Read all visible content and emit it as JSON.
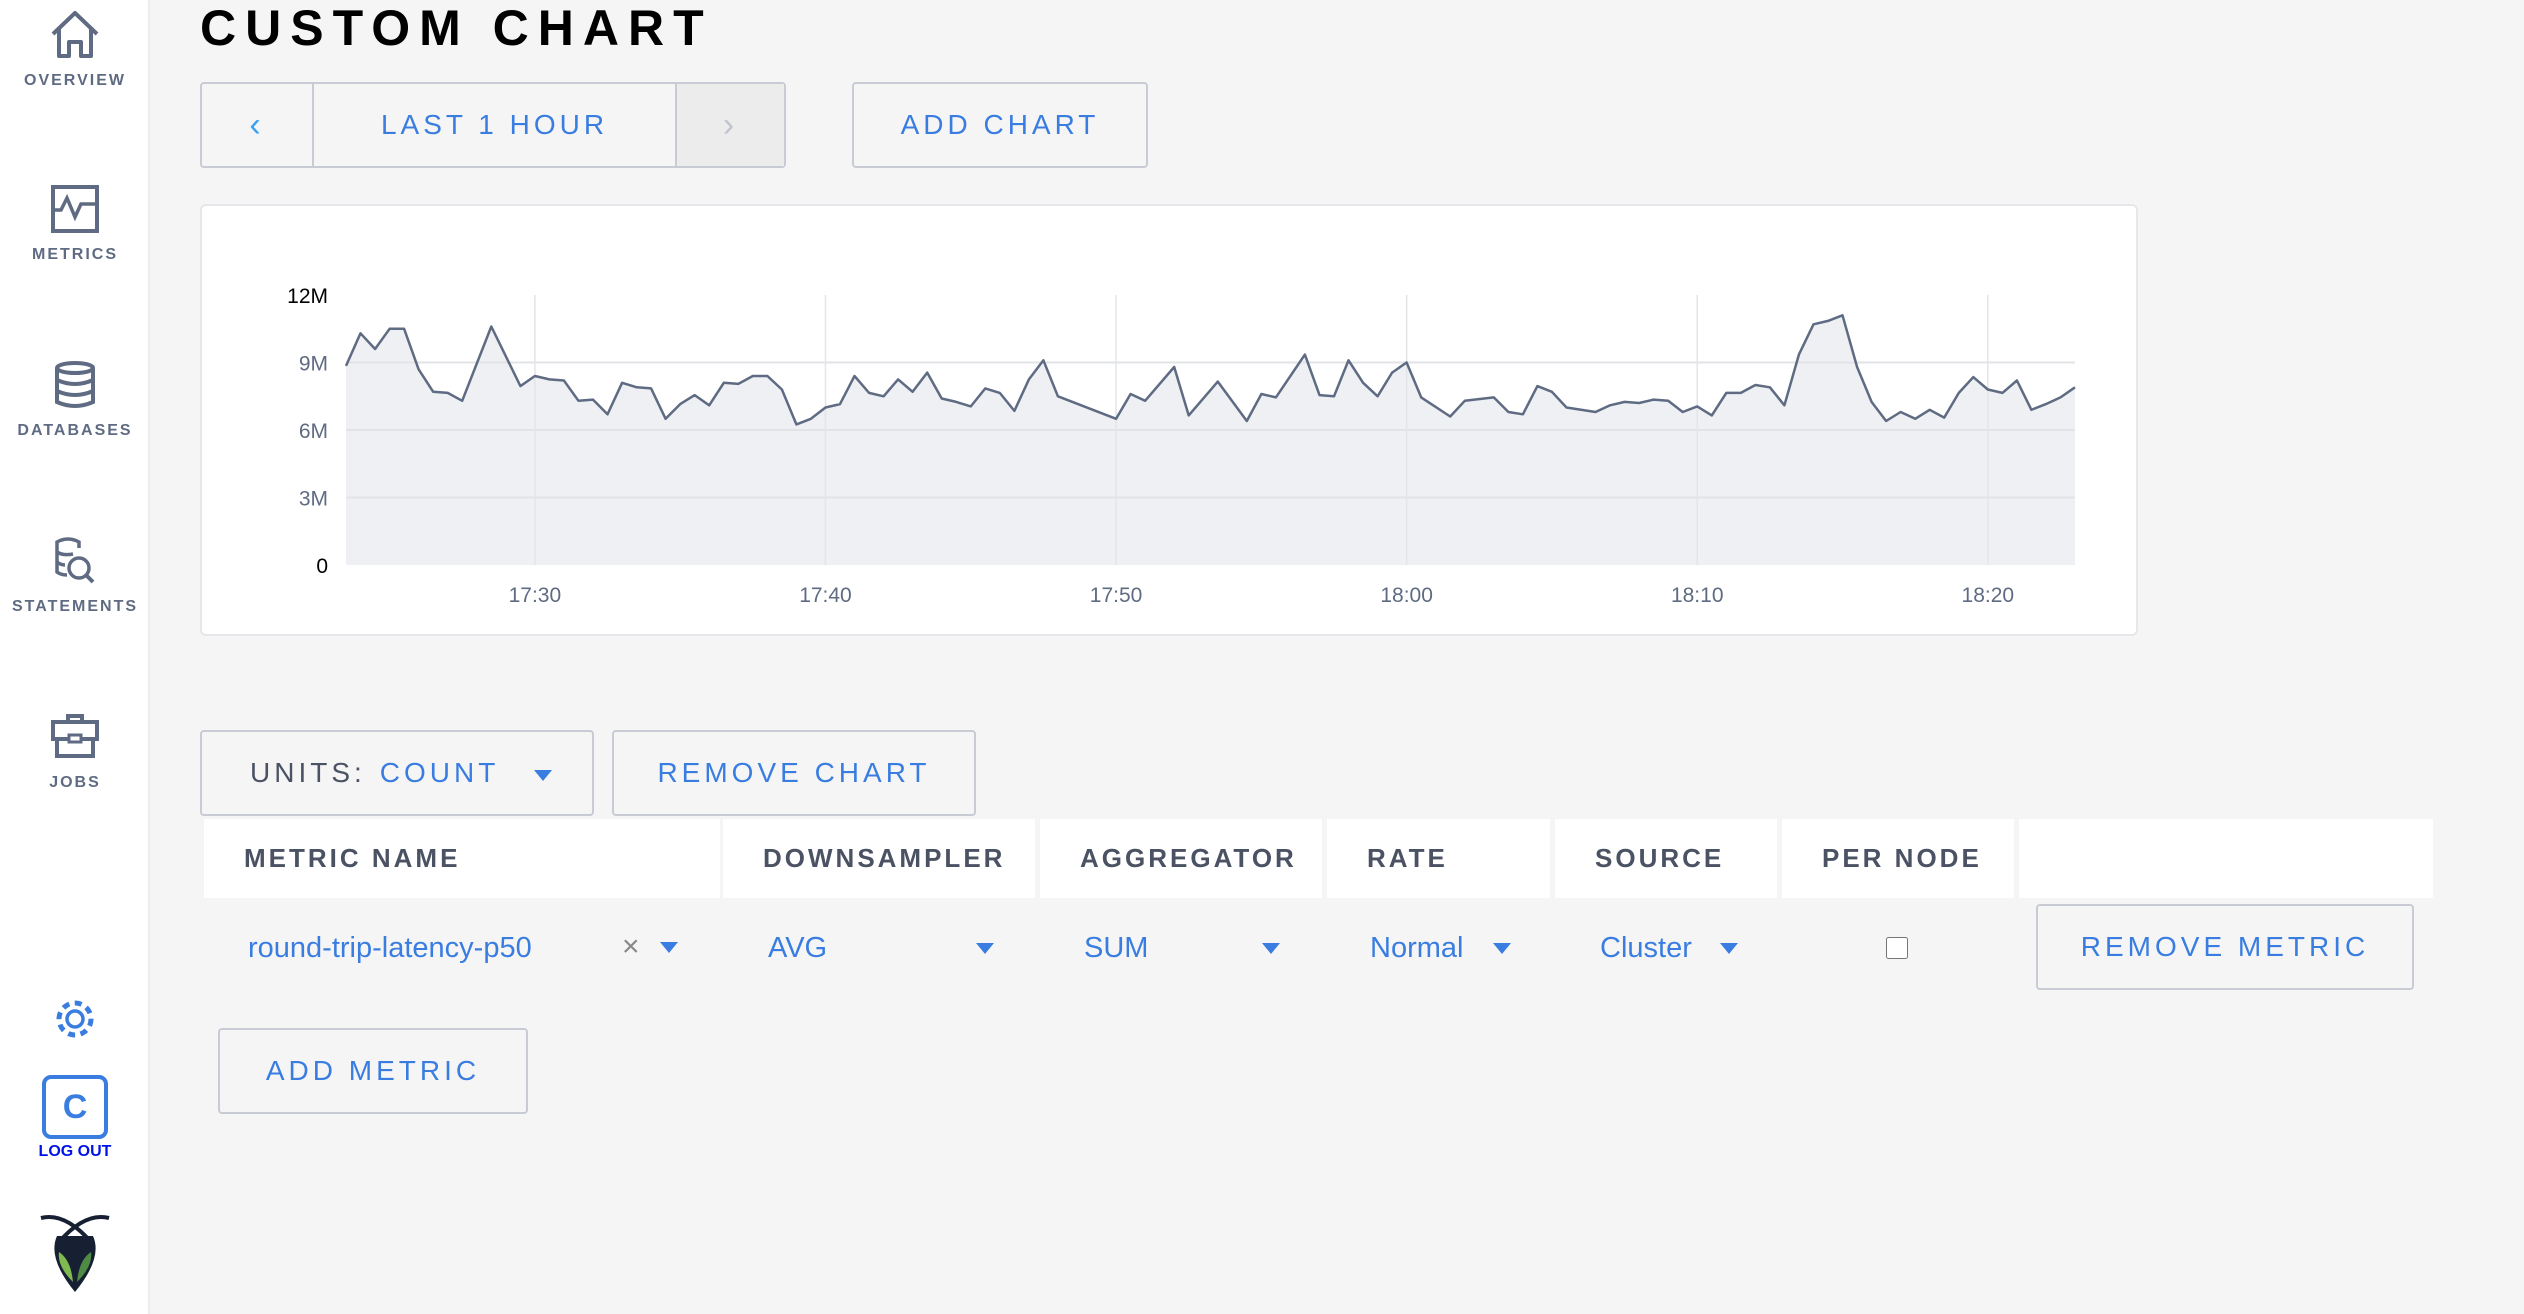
{
  "sidebar": {
    "items": [
      {
        "label": "OVERVIEW",
        "icon": "home-icon"
      },
      {
        "label": "METRICS",
        "icon": "metrics-icon"
      },
      {
        "label": "DATABASES",
        "icon": "database-icon"
      },
      {
        "label": "STATEMENTS",
        "icon": "statements-icon"
      },
      {
        "label": "JOBS",
        "icon": "briefcase-icon"
      }
    ],
    "settings_icon": "gear-icon",
    "user_initial": "C",
    "logout_label": "LOG OUT",
    "logo": "cockroach-logo"
  },
  "page": {
    "title": "CUSTOM CHART"
  },
  "toolbar": {
    "prev_icon": "chevron-left-icon",
    "time_range": "LAST 1 HOUR",
    "next_icon": "chevron-right-icon",
    "add_chart": "ADD CHART"
  },
  "chart_controls": {
    "units_label": "UNITS:",
    "units_value": "COUNT",
    "remove_chart": "REMOVE CHART"
  },
  "table": {
    "headers": [
      "METRIC NAME",
      "DOWNSAMPLER",
      "AGGREGATOR",
      "RATE",
      "SOURCE",
      "PER NODE"
    ],
    "rows": [
      {
        "metric": "round-trip-latency-p50",
        "downsampler": "AVG",
        "aggregator": "SUM",
        "rate": "Normal",
        "source": "Cluster",
        "per_node": false,
        "remove": "REMOVE METRIC"
      }
    ],
    "add_metric": "ADD METRIC"
  },
  "colors": {
    "accent": "#3a7de1",
    "line": "#5f6b82",
    "area": "#eef0f4"
  },
  "chart_data": {
    "type": "area",
    "grid": true,
    "ylim": [
      0,
      12000000
    ],
    "yticks": [
      "0",
      "3M",
      "6M",
      "9M",
      "12M"
    ],
    "ytick_values": [
      0,
      3000000,
      6000000,
      9000000,
      12000000
    ],
    "xlim": [
      "17:23:30",
      "18:23:00"
    ],
    "xticks": [
      "17:30",
      "17:40",
      "17:50",
      "18:00",
      "18:10",
      "18:20"
    ],
    "series": [
      {
        "x": [
          "17:23:30",
          "17:24:00",
          "17:24:30",
          "17:25:00",
          "17:25:30",
          "17:26:00",
          "17:26:30",
          "17:27:00",
          "17:27:30",
          "17:28:30",
          "17:29:30",
          "17:30:00",
          "17:30:30",
          "17:31:00",
          "17:31:30",
          "17:32:00",
          "17:32:30",
          "17:33:00",
          "17:33:30",
          "17:34:00",
          "17:34:30",
          "17:35:00",
          "17:35:30",
          "17:36:00",
          "17:36:30",
          "17:37:00",
          "17:37:30",
          "17:38:00",
          "17:38:30",
          "17:39:00",
          "17:39:30",
          "17:40:00",
          "17:40:30",
          "17:41:00",
          "17:41:30",
          "17:42:00",
          "17:42:30",
          "17:43:00",
          "17:43:30",
          "17:44:00",
          "17:44:30",
          "17:45:00",
          "17:45:30",
          "17:46:00",
          "17:46:30",
          "17:47:00",
          "17:47:30",
          "17:48:00",
          "17:50:00",
          "17:50:30",
          "17:51:00",
          "17:52:00",
          "17:52:30",
          "17:53:30",
          "17:54:30",
          "17:55:00",
          "17:55:30",
          "17:56:30",
          "17:57:00",
          "17:57:30",
          "17:58:00",
          "17:58:30",
          "17:59:00",
          "17:59:30",
          "18:00:00",
          "18:00:30",
          "18:01:30",
          "18:02:00",
          "18:03:00",
          "18:03:30",
          "18:04:00",
          "18:04:30",
          "18:05:00",
          "18:05:30",
          "18:06:30",
          "18:07:00",
          "18:07:30",
          "18:08:00",
          "18:08:30",
          "18:09:00",
          "18:09:30",
          "18:10:00",
          "18:10:30",
          "18:11:00",
          "18:11:30",
          "18:12:00",
          "18:12:30",
          "18:13:00",
          "18:13:30",
          "18:14:00",
          "18:14:30",
          "18:15:00",
          "18:15:30",
          "18:16:00",
          "18:16:30",
          "18:17:00",
          "18:17:30",
          "18:18:00",
          "18:18:30",
          "18:19:00",
          "18:19:30",
          "18:20:00",
          "18:20:30",
          "18:21:00",
          "18:21:30",
          "18:22:00",
          "18:22:30",
          "18:23:00"
        ],
        "y": [
          8850000,
          10300000,
          9600000,
          10500000,
          10500000,
          8700000,
          7700000,
          7650000,
          7300000,
          10600000,
          7950000,
          8400000,
          8250000,
          8200000,
          7300000,
          7350000,
          6700000,
          8100000,
          7900000,
          7850000,
          6500000,
          7150000,
          7550000,
          7100000,
          8100000,
          8050000,
          8400000,
          8400000,
          7800000,
          6250000,
          6500000,
          7000000,
          7150000,
          8400000,
          7650000,
          7500000,
          8250000,
          7700000,
          8550000,
          7400000,
          7250000,
          7050000,
          7850000,
          7650000,
          6850000,
          8250000,
          9100000,
          7500000,
          6500000,
          7600000,
          7300000,
          8800000,
          6650000,
          8150000,
          6400000,
          7600000,
          7450000,
          9350000,
          7550000,
          7500000,
          9100000,
          8100000,
          7500000,
          8550000,
          9000000,
          7450000,
          6600000,
          7300000,
          7450000,
          6800000,
          6700000,
          7950000,
          7700000,
          7000000,
          6800000,
          7100000,
          7250000,
          7200000,
          7350000,
          7300000,
          6800000,
          7050000,
          6650000,
          7650000,
          7650000,
          8000000,
          7900000,
          7100000,
          9350000,
          10700000,
          10850000,
          11100000,
          8800000,
          7250000,
          6400000,
          6800000,
          6500000,
          6900000,
          6550000,
          7650000,
          8350000,
          7800000,
          7650000,
          8200000,
          6900000,
          7150000,
          7450000,
          7900000
        ]
      }
    ]
  }
}
